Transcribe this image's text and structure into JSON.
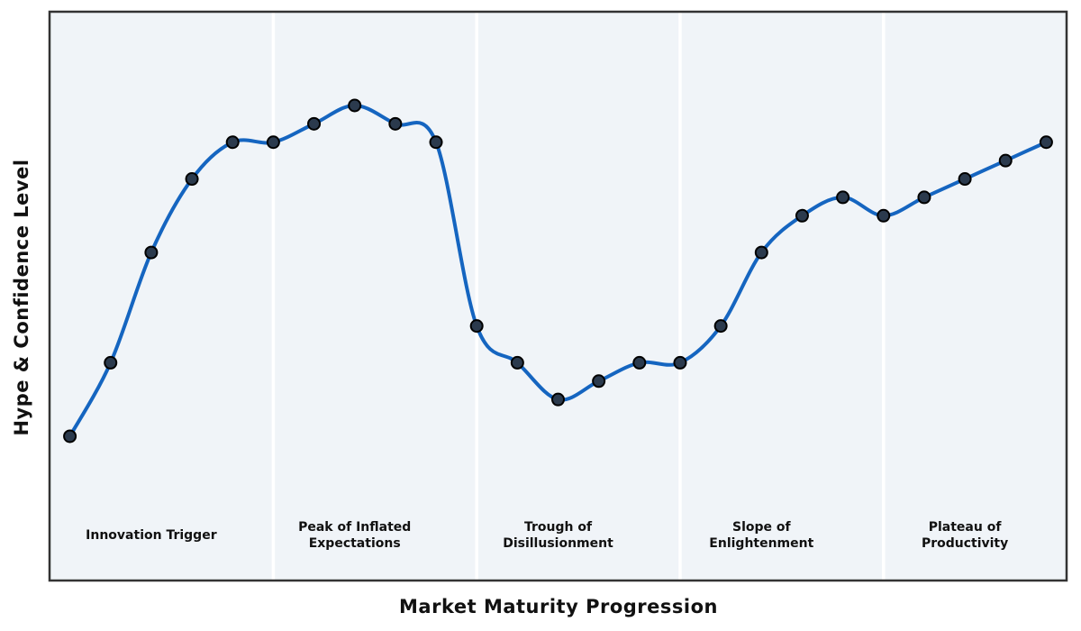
{
  "chart_data": {
    "type": "line",
    "title": "",
    "xlabel": "Market Maturity Progression",
    "ylabel": "Hype & Confidence Level",
    "x": [
      0,
      1,
      2,
      3,
      4,
      5,
      6,
      7,
      8,
      9,
      10,
      11,
      12,
      13,
      14,
      15,
      16,
      17,
      18,
      19,
      20,
      21,
      22,
      23,
      24
    ],
    "y": [
      10,
      18,
      30,
      38,
      42,
      42,
      44,
      46,
      44,
      42,
      22,
      18,
      14,
      16,
      18,
      18,
      22,
      30,
      34,
      36,
      34,
      36,
      38,
      40,
      42
    ],
    "xlim": [
      -0.5,
      24.5
    ],
    "ylim": [
      -5.7,
      56.2
    ],
    "grid": false,
    "legend_position": "none",
    "ticks_visible": false,
    "phase_separators_x": [
      5,
      10,
      15,
      20
    ],
    "phases": [
      {
        "label": "Innovation Trigger",
        "lines": [
          "Innovation Trigger"
        ],
        "center_x": 2
      },
      {
        "label": "Peak of Inflated Expectations",
        "lines": [
          "Peak of Inflated",
          "Expectations"
        ],
        "center_x": 7
      },
      {
        "label": "Trough of Disillusionment",
        "lines": [
          "Trough of",
          "Disillusionment"
        ],
        "center_x": 12
      },
      {
        "label": "Slope of Enlightenment",
        "lines": [
          "Slope of",
          "Enlightenment"
        ],
        "center_x": 17
      },
      {
        "label": "Plateau of Productivity",
        "lines": [
          "Plateau of",
          "Productivity"
        ],
        "center_x": 22
      }
    ],
    "colors": {
      "line": "#1565c0",
      "marker_fill": "#2b3a4d",
      "marker_edge": "#000000",
      "plot_bg": "#f0f4f8",
      "separator": "#ffffff",
      "frame": "#333333",
      "text": "#111111",
      "figure_bg": "#ffffff"
    },
    "style": {
      "line_width": 4,
      "marker_radius": 6.5,
      "marker_edge_width": 2,
      "separator_width": 3.5,
      "frame_width": 2.5
    }
  }
}
